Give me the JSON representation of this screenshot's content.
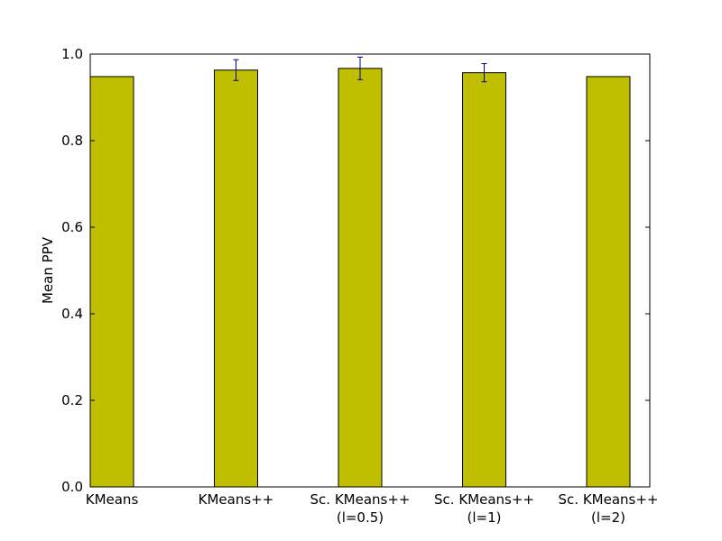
{
  "chart_data": {
    "type": "bar",
    "title": "",
    "xlabel": "",
    "ylabel": "Mean PPV",
    "ylim": [
      0,
      1.0
    ],
    "yticks": [
      "0.0",
      "0.2",
      "0.4",
      "0.6",
      "0.8",
      "1.0"
    ],
    "categories": [
      [
        "KMeans"
      ],
      [
        "KMeans++"
      ],
      [
        "Sc. KMeans++",
        "(l=0.5)"
      ],
      [
        "Sc. KMeans++",
        "(l=1)"
      ],
      [
        "Sc. KMeans++",
        "(l=2)"
      ]
    ],
    "values": [
      0.948,
      0.963,
      0.967,
      0.957,
      0.948
    ],
    "errors": [
      0,
      0.024,
      0.026,
      0.021,
      0
    ],
    "bar_color": "#bfbf00",
    "error_color": "#00008b",
    "grid": false
  }
}
